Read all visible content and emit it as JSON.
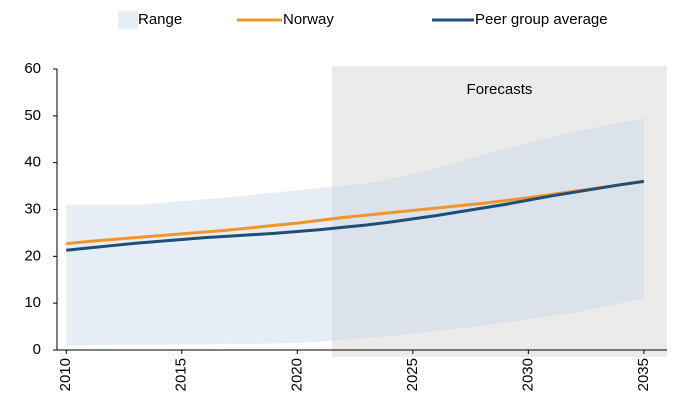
{
  "chart_data": {
    "type": "line",
    "x": [
      2010,
      2011,
      2012,
      2013,
      2014,
      2015,
      2016,
      2017,
      2018,
      2019,
      2020,
      2021,
      2022,
      2023,
      2024,
      2025,
      2026,
      2027,
      2028,
      2029,
      2030,
      2031,
      2032,
      2033,
      2034,
      2035
    ],
    "range": {
      "name": "Range",
      "color": "#c9d6e8",
      "high": [
        31,
        31,
        31,
        31,
        31.3,
        31.8,
        32.2,
        32.6,
        33.1,
        33.6,
        34.1,
        34.6,
        35.1,
        35.6,
        36.5,
        37.6,
        38.8,
        40.2,
        41.6,
        43,
        44.3,
        45.5,
        46.6,
        47.6,
        48.6,
        49.5
      ],
      "low": [
        1,
        1,
        1.1,
        1.1,
        1.1,
        1.2,
        1.2,
        1.3,
        1.3,
        1.4,
        1.5,
        1.8,
        2.2,
        2.6,
        3,
        3.5,
        4,
        4.6,
        5.2,
        5.9,
        6.6,
        7.3,
        8,
        9,
        10,
        11
      ]
    },
    "series": [
      {
        "name": "Norway",
        "color": "#f0952b",
        "values": [
          22.7,
          23.2,
          23.6,
          24.0,
          24.4,
          24.8,
          25.2,
          25.6,
          26.1,
          26.6,
          27.1,
          27.7,
          28.3,
          28.8,
          29.3,
          29.8,
          30.3,
          30.8,
          31.3,
          31.9,
          32.5,
          33.2,
          33.9,
          34.6,
          35.3,
          36.0
        ]
      },
      {
        "name": "Peer group average",
        "color": "#1f4e79",
        "values": [
          21.3,
          21.8,
          22.3,
          22.8,
          23.2,
          23.6,
          24.0,
          24.3,
          24.6,
          24.9,
          25.3,
          25.7,
          26.2,
          26.7,
          27.3,
          28.0,
          28.7,
          29.5,
          30.3,
          31.1,
          32.0,
          32.9,
          33.7,
          34.5,
          35.3,
          36.0
        ]
      }
    ],
    "forecast": {
      "label": "Forecasts",
      "start": 2021.5,
      "color": "#ebebeb"
    },
    "xlim": [
      2009.6,
      2036
    ],
    "xticks": [
      2010,
      2015,
      2020,
      2025,
      2030,
      2035
    ],
    "ylim": [
      0,
      60
    ],
    "yticks": [
      0,
      10,
      20,
      30,
      40,
      50,
      60
    ],
    "legend": "top"
  }
}
